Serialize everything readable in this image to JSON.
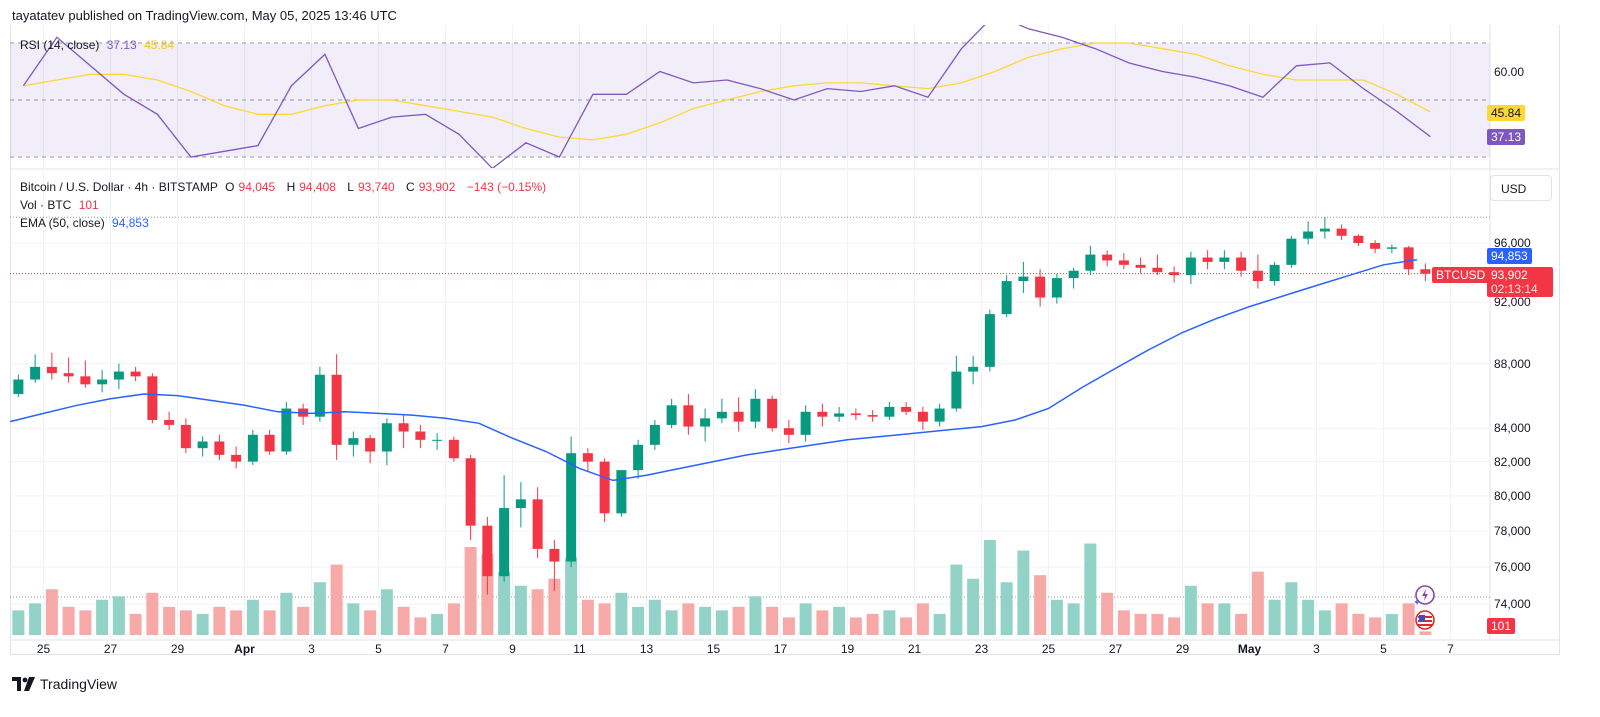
{
  "header": {
    "published": "tayatatev published on TradingView.com, May 05, 2025 13:46 UTC"
  },
  "legend": {
    "rsi_title": "RSI (14, close)",
    "rsi_value": "37.13",
    "rsi_ma_value": "45.84",
    "symbol": "Bitcoin / U.S. Dollar · 4h · BITSTAMP",
    "o_label": "O",
    "o": "94,045",
    "h_label": "H",
    "h": "94,408",
    "l_label": "L",
    "l": "93,740",
    "c_label": "C",
    "c": "93,902",
    "change": "−143 (−0.15%)",
    "vol_title": "Vol · BTC",
    "vol_value": "101",
    "ema_title": "EMA (50, close)",
    "ema_value": "94,853"
  },
  "price_axis": {
    "currency": "USD",
    "labels": [
      "96,000",
      "92,000",
      "88,000",
      "84,000",
      "82,000",
      "80,000",
      "78,000",
      "76,000",
      "74,000"
    ]
  },
  "rsi_axis": {
    "labels": [
      "60.00"
    ]
  },
  "badges": {
    "rsi_ma": "45.84",
    "rsi": "37.13",
    "ema": "94,853",
    "symbol": "BTCUSD",
    "price": "93,902",
    "countdown": "02:13:14",
    "volume": "101"
  },
  "time_axis": {
    "labels": [
      "25",
      "27",
      "29",
      "Apr",
      "3",
      "5",
      "7",
      "9",
      "11",
      "13",
      "15",
      "17",
      "19",
      "21",
      "23",
      "25",
      "27",
      "29",
      "May",
      "3",
      "5",
      "7"
    ]
  },
  "footer": {
    "brand": "TradingView"
  },
  "icons": {
    "event": "lightning-icon",
    "economic": "us-flag-icon",
    "logo": "tradingview-logo-icon"
  },
  "colors": {
    "up": "#089981",
    "down": "#f23645",
    "vol_up": "#92d2c7",
    "vol_down": "#f7a9a8",
    "ema": "#2962ff",
    "rsi": "#7e57c2",
    "rsi_ma": "#fdd835",
    "rsi_band": "#7e57c2"
  },
  "chart_data": {
    "type": "candlestick",
    "interval_note": "candles approximated at 12h resolution starting Mar 24 2025 00:00",
    "y_scale": "log",
    "ylim": [
      72500,
      98500
    ],
    "start": "2025-03-24",
    "ohlc": [
      [
        86100,
        87300,
        85900,
        87000
      ],
      [
        87000,
        88600,
        86800,
        87800
      ],
      [
        87800,
        88700,
        87000,
        87400
      ],
      [
        87400,
        88400,
        86800,
        87200
      ],
      [
        87200,
        88200,
        86500,
        86700
      ],
      [
        86700,
        87600,
        86200,
        87000
      ],
      [
        87000,
        88000,
        86400,
        87500
      ],
      [
        87500,
        87800,
        86900,
        87200
      ],
      [
        87200,
        87400,
        84300,
        84500
      ],
      [
        84500,
        85000,
        83900,
        84200
      ],
      [
        84200,
        84600,
        82500,
        82800
      ],
      [
        82800,
        83500,
        82300,
        83200
      ],
      [
        83200,
        83600,
        82100,
        82400
      ],
      [
        82400,
        82900,
        81600,
        82000
      ],
      [
        82000,
        83900,
        81800,
        83600
      ],
      [
        83600,
        83900,
        82400,
        82600
      ],
      [
        82600,
        85600,
        82400,
        85200
      ],
      [
        85200,
        85500,
        84200,
        84700
      ],
      [
        84700,
        87800,
        84400,
        87300
      ],
      [
        87300,
        88600,
        82100,
        83000
      ],
      [
        83000,
        83800,
        82300,
        83400
      ],
      [
        83400,
        83600,
        81900,
        82600
      ],
      [
        82600,
        84600,
        81800,
        84300
      ],
      [
        84300,
        84800,
        82800,
        83800
      ],
      [
        83800,
        84200,
        82800,
        83300
      ],
      [
        83300,
        83700,
        82700,
        83300
      ],
      [
        83300,
        83500,
        82000,
        82200
      ],
      [
        82200,
        82400,
        77500,
        78300
      ],
      [
        78300,
        78800,
        74500,
        75500
      ],
      [
        75500,
        81200,
        75200,
        79300
      ],
      [
        79300,
        80800,
        78200,
        79800
      ],
      [
        79800,
        80500,
        76500,
        77000
      ],
      [
        77000,
        77500,
        74700,
        76300
      ],
      [
        76300,
        83500,
        76000,
        82500
      ],
      [
        82500,
        82800,
        81400,
        82000
      ],
      [
        82000,
        82200,
        78500,
        79000
      ],
      [
        79000,
        81500,
        78800,
        81500
      ],
      [
        81500,
        83300,
        81000,
        83000
      ],
      [
        83000,
        84500,
        82700,
        84200
      ],
      [
        84200,
        85800,
        84000,
        85400
      ],
      [
        85400,
        86100,
        83600,
        84100
      ],
      [
        84100,
        85200,
        83200,
        84600
      ],
      [
        84600,
        85800,
        84300,
        85000
      ],
      [
        85000,
        85900,
        83800,
        84400
      ],
      [
        84400,
        86400,
        84000,
        85800
      ],
      [
        85800,
        86000,
        83800,
        84000
      ],
      [
        84000,
        84500,
        83100,
        83600
      ],
      [
        83600,
        85400,
        83200,
        85000
      ],
      [
        85000,
        85500,
        84100,
        84700
      ],
      [
        84700,
        85300,
        84400,
        84900
      ],
      [
        84900,
        85200,
        84500,
        84800
      ],
      [
        84800,
        85100,
        84400,
        84700
      ],
      [
        84700,
        85600,
        84500,
        85300
      ],
      [
        85300,
        85600,
        84800,
        85000
      ],
      [
        85000,
        85300,
        83900,
        84400
      ],
      [
        84400,
        85500,
        84100,
        85200
      ],
      [
        85200,
        88500,
        85000,
        87500
      ],
      [
        87500,
        88500,
        86700,
        87800
      ],
      [
        87800,
        91500,
        87500,
        91200
      ],
      [
        91200,
        93800,
        91000,
        93400
      ],
      [
        93400,
        94700,
        92600,
        93700
      ],
      [
        93700,
        94200,
        91700,
        92300
      ],
      [
        92300,
        93900,
        91900,
        93600
      ],
      [
        93600,
        94300,
        92900,
        94100
      ],
      [
        94100,
        95800,
        93800,
        95200
      ],
      [
        95200,
        95500,
        94400,
        94800
      ],
      [
        94800,
        95300,
        94200,
        94500
      ],
      [
        94500,
        95000,
        93900,
        94300
      ],
      [
        94300,
        95200,
        93800,
        94000
      ],
      [
        94000,
        94400,
        93300,
        93800
      ],
      [
        93800,
        95400,
        93200,
        95000
      ],
      [
        95000,
        95500,
        94200,
        94700
      ],
      [
        94700,
        95500,
        94200,
        95000
      ],
      [
        95000,
        95400,
        93700,
        94100
      ],
      [
        94100,
        95200,
        92900,
        93400
      ],
      [
        93400,
        94700,
        93100,
        94500
      ],
      [
        94500,
        96500,
        94300,
        96300
      ],
      [
        96300,
        97500,
        95900,
        96800
      ],
      [
        96800,
        97800,
        96300,
        97000
      ],
      [
        97000,
        97300,
        96200,
        96500
      ],
      [
        96500,
        96600,
        95800,
        96000
      ],
      [
        96000,
        96200,
        95300,
        95600
      ],
      [
        95600,
        95900,
        95300,
        95700
      ],
      [
        95700,
        95800,
        93800,
        94200
      ],
      [
        94200,
        94600,
        93400,
        93902
      ]
    ],
    "volume": [
      700,
      900,
      1300,
      800,
      700,
      1000,
      1100,
      600,
      1200,
      800,
      700,
      600,
      800,
      700,
      1000,
      700,
      1200,
      800,
      1500,
      2000,
      900,
      700,
      1300,
      800,
      500,
      600,
      900,
      2500,
      2300,
      1800,
      1400,
      1300,
      1600,
      2200,
      1000,
      900,
      1200,
      800,
      1000,
      700,
      900,
      800,
      700,
      800,
      1100,
      800,
      500,
      900,
      700,
      800,
      500,
      600,
      700,
      500,
      900,
      600,
      2000,
      1600,
      2700,
      1500,
      2400,
      1700,
      1000,
      900,
      2600,
      1200,
      700,
      600,
      600,
      500,
      1400,
      900,
      900,
      600,
      1800,
      1000,
      1500,
      1000,
      700,
      900,
      600,
      500,
      600,
      900,
      101
    ],
    "ema50_daily": [
      84400,
      84900,
      85400,
      85800,
      86100,
      86000,
      85700,
      85400,
      85000,
      84900,
      85000,
      84900,
      84800,
      84600,
      84300,
      83400,
      82600,
      81600,
      80900,
      81200,
      81600,
      82000,
      82400,
      82700,
      83000,
      83300,
      83500,
      83700,
      83900,
      84100,
      84500,
      85200,
      86500,
      87700,
      88900,
      90000,
      90900,
      91700,
      92400,
      93100,
      93800,
      94500,
      94853
    ],
    "rsi_daily": [
      55,
      72,
      62,
      52,
      45,
      30,
      32,
      34,
      55,
      66,
      40,
      44,
      45,
      38,
      26,
      35,
      30,
      52,
      52,
      60,
      56,
      57,
      54,
      50,
      54,
      53,
      55,
      51,
      68,
      80,
      75,
      72,
      68,
      63,
      60,
      58,
      55,
      51,
      62,
      63,
      54,
      46,
      37.13
    ],
    "rsi_ma_daily": [
      55,
      57,
      59,
      59,
      57,
      53,
      48,
      45,
      45,
      48,
      50,
      50,
      48,
      46,
      44,
      40,
      37,
      36,
      38,
      42,
      47,
      50,
      53,
      55,
      56,
      56,
      55,
      54,
      56,
      60,
      65,
      68,
      70,
      70,
      68,
      66,
      62,
      59,
      57,
      57,
      57,
      52,
      45.84
    ],
    "rsi_levels": [
      70,
      50,
      30
    ],
    "current_price": 93902,
    "grid": true
  }
}
